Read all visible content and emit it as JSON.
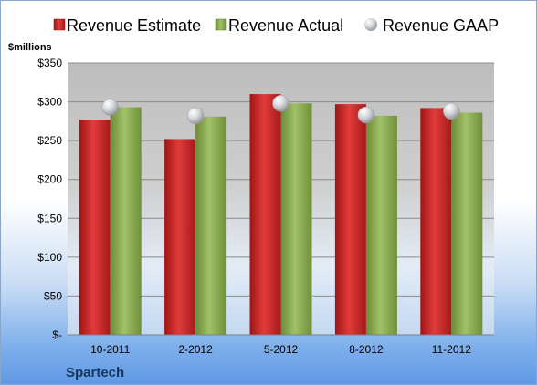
{
  "chart_data": {
    "type": "bar",
    "company": "Spartech",
    "unit_label": "$millions",
    "categories": [
      "10-2011",
      "2-2012",
      "5-2012",
      "8-2012",
      "11-2012"
    ],
    "series": [
      {
        "name": "Revenue Estimate",
        "type": "bar",
        "color": "#d42a2a",
        "values": [
          277,
          252,
          310,
          297,
          292
        ]
      },
      {
        "name": "Revenue Actual",
        "type": "bar",
        "color": "#8aac4f",
        "values": [
          293,
          281,
          298,
          282,
          286
        ]
      },
      {
        "name": "Revenue GAAP",
        "type": "marker",
        "color": "#c8cad0",
        "values": [
          293,
          282,
          298,
          283,
          288
        ]
      }
    ],
    "ylim": [
      0,
      350
    ],
    "yticks": [
      0,
      50,
      100,
      150,
      200,
      250,
      300,
      350
    ],
    "ytick_labels": [
      "$-",
      "$50",
      "$100",
      "$150",
      "$200",
      "$250",
      "$300",
      "$350"
    ],
    "grid": true,
    "legend_position": "top"
  }
}
